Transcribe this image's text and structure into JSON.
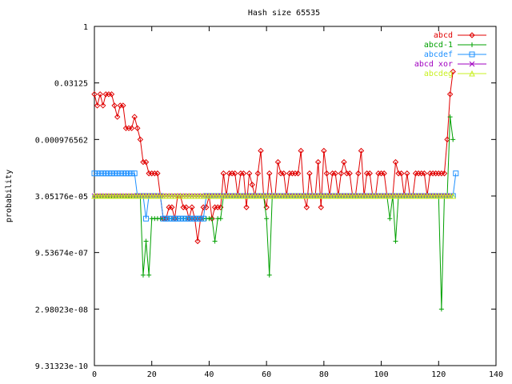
{
  "chart_data": {
    "type": "line",
    "title": "Hash size 65535",
    "xlabel": "",
    "ylabel": "probability",
    "xlim": [
      0,
      140
    ],
    "x_ticks": [
      0,
      20,
      40,
      60,
      80,
      100,
      120,
      140
    ],
    "x_tick_labels": [
      "0",
      "20",
      "40",
      "60",
      "80",
      "100",
      "120",
      "140"
    ],
    "ylim_log2": [
      -30,
      0
    ],
    "y_scale": "log2",
    "y_ticks_log2": [
      0,
      -5,
      -10,
      -15,
      -20,
      -25,
      -30
    ],
    "y_tick_labels": [
      "1",
      "0.03125",
      "0.000976562",
      "3.05176e-05",
      "9.53674e-07",
      "2.98023e-08",
      "9.31323e-10"
    ],
    "legend_position": "top-right",
    "grid": false,
    "series": [
      {
        "name": "abcd",
        "color": "#e00000",
        "marker": "diamond",
        "x_start": 0,
        "y_log2": [
          -6,
          -7,
          -6,
          -7,
          -6,
          -6,
          -6,
          -7,
          -8,
          -7,
          -7,
          -9,
          -9,
          -9,
          -8,
          -9,
          -10,
          -12,
          -12,
          -13,
          -13,
          -13,
          -13,
          -15,
          -17,
          -17,
          -16,
          -16,
          -17,
          -15,
          -15,
          -16,
          -16,
          -17,
          -16,
          -17,
          -19,
          -17,
          -16,
          -16,
          -15,
          -17,
          -16,
          -16,
          -16,
          -13,
          -15,
          -13,
          -13,
          -13,
          -15,
          -13,
          -13,
          -16,
          -13,
          -14,
          -15,
          -13,
          -11,
          -15,
          -16,
          -13,
          -15,
          -15,
          -12,
          -13,
          -13,
          -15,
          -13,
          -13,
          -13,
          -13,
          -11,
          -15,
          -16,
          -13,
          -15,
          -15,
          -12,
          -16,
          -11,
          -13,
          -15,
          -13,
          -13,
          -15,
          -13,
          -12,
          -13,
          -13,
          -15,
          -15,
          -13,
          -11,
          -15,
          -13,
          -13,
          -15,
          -15,
          -13,
          -13,
          -13,
          -15,
          -15,
          -15,
          -12,
          -13,
          -13,
          -15,
          -13,
          -15,
          -15,
          -13,
          -13,
          -13,
          -13,
          -15,
          -13,
          -13,
          -13,
          -13,
          -13,
          -13,
          -10,
          -6,
          -4
        ]
      },
      {
        "name": "abcd-1",
        "color": "#00a000",
        "marker": "plus",
        "x_start": 0,
        "y_log2": [
          -15,
          -15,
          -15,
          -15,
          -15,
          -15,
          -15,
          -15,
          -15,
          -15,
          -15,
          -15,
          -15,
          -15,
          -15,
          -15,
          -15,
          -22,
          -19,
          -22,
          -17,
          -17,
          -17,
          -17,
          -17,
          -17,
          -17,
          -17,
          -17,
          -17,
          -17,
          -17,
          -17,
          -17,
          -17,
          -17,
          -17,
          -17,
          -17,
          -17,
          -17,
          -17,
          -19,
          -17,
          -17,
          -15,
          -15,
          -15,
          -15,
          -15,
          -15,
          -15,
          -15,
          -15,
          -15,
          -15,
          -15,
          -15,
          -15,
          -15,
          -17,
          -22,
          -15,
          -15,
          -15,
          -15,
          -15,
          -15,
          -15,
          -15,
          -15,
          -15,
          -15,
          -15,
          -15,
          -15,
          -15,
          -15,
          -15,
          -15,
          -15,
          -15,
          -15,
          -15,
          -15,
          -15,
          -15,
          -15,
          -15,
          -15,
          -15,
          -15,
          -15,
          -15,
          -15,
          -15,
          -15,
          -15,
          -15,
          -15,
          -15,
          -15,
          -15,
          -17,
          -15,
          -19,
          -15,
          -15,
          -15,
          -15,
          -15,
          -15,
          -15,
          -15,
          -15,
          -15,
          -15,
          -15,
          -15,
          -15,
          -15,
          -25,
          -15,
          -15,
          -8,
          -10
        ]
      },
      {
        "name": "abcdef",
        "color": "#1e90ff",
        "marker": "square",
        "x_start": 0,
        "y_log2": [
          -13,
          -13,
          -13,
          -13,
          -13,
          -13,
          -13,
          -13,
          -13,
          -13,
          -13,
          -13,
          -13,
          -13,
          -13,
          -15,
          -15,
          -15,
          -17,
          -15,
          -15,
          -15,
          -15,
          -15,
          -17,
          -17,
          -17,
          -17,
          -17,
          -17,
          -17,
          -17,
          -17,
          -17,
          -17,
          -17,
          -17,
          -17,
          -17,
          -15,
          -15,
          -15,
          -15,
          -15,
          -15,
          -15,
          -15,
          -15,
          -15,
          -15,
          -15,
          -15,
          -15,
          -15,
          -15,
          -15,
          -15,
          -15,
          -15,
          -15,
          -15,
          -15,
          -15,
          -15,
          -15,
          -15,
          -15,
          -15,
          -15,
          -15,
          -15,
          -15,
          -15,
          -15,
          -15,
          -15,
          -15,
          -15,
          -15,
          -15,
          -15,
          -15,
          -15,
          -15,
          -15,
          -15,
          -15,
          -15,
          -15,
          -15,
          -15,
          -15,
          -15,
          -15,
          -15,
          -15,
          -15,
          -15,
          -15,
          -15,
          -15,
          -15,
          -15,
          -15,
          -15,
          -15,
          -15,
          -15,
          -15,
          -15,
          -15,
          -15,
          -15,
          -15,
          -15,
          -15,
          -15,
          -15,
          -15,
          -15,
          -15,
          -15,
          -15,
          -15,
          -15,
          -15,
          -13
        ]
      },
      {
        "name": "abcd xor",
        "color": "#a000c0",
        "marker": "cross",
        "x_start": 0,
        "y_log2": [
          -15,
          -15,
          -15,
          -15,
          -15,
          -15,
          -15,
          -15,
          -15,
          -15,
          -15,
          -15,
          -15,
          -15,
          -15,
          -15,
          -15,
          -15,
          -15,
          -15,
          -15,
          -15,
          -15,
          -15,
          -15,
          -15,
          -15,
          -15,
          -15,
          -15,
          -15,
          -15,
          -15,
          -15,
          -15,
          -15,
          -15,
          -15,
          -15,
          -15,
          -15,
          -15,
          -15,
          -15,
          -15,
          -15,
          -15,
          -15,
          -15,
          -15,
          -15,
          -15,
          -15,
          -15,
          -15,
          -15,
          -15,
          -15,
          -15,
          -15,
          -15,
          -15,
          -15,
          -15,
          -15,
          -15,
          -15,
          -15,
          -15,
          -15,
          -15,
          -15,
          -15,
          -15,
          -15,
          -15,
          -15,
          -15,
          -15,
          -15,
          -15,
          -15,
          -15,
          -15,
          -15,
          -15,
          -15,
          -15,
          -15,
          -15,
          -15,
          -15,
          -15,
          -15,
          -15,
          -15,
          -15,
          -15,
          -15,
          -15,
          -15,
          -15,
          -15,
          -15,
          -15,
          -15,
          -15,
          -15,
          -15,
          -15,
          -15,
          -15,
          -15,
          -15,
          -15,
          -15,
          -15,
          -15,
          -15,
          -15,
          -15,
          -15,
          -15,
          -15,
          -15
        ]
      },
      {
        "name": "abcdeg",
        "color": "#c8f020",
        "marker": "triangle",
        "x_start": 0,
        "y_log2": [
          -15,
          -15,
          -15,
          -15,
          -15,
          -15,
          -15,
          -15,
          -15,
          -15,
          -15,
          -15,
          -15,
          -15,
          -15,
          -15,
          -15,
          -15,
          -15,
          -15,
          -15,
          -15,
          -15,
          -15,
          -15,
          -15,
          -15,
          -15,
          -15,
          -15,
          -15,
          -15,
          -15,
          -15,
          -15,
          -15,
          -15,
          -15,
          -15,
          -15,
          -15,
          -15,
          -15,
          -15,
          -15,
          -15,
          -15,
          -15,
          -15,
          -15,
          -15,
          -15,
          -15,
          -15,
          -15,
          -15,
          -15,
          -15,
          -15,
          -15,
          -15,
          -15,
          -15,
          -15,
          -15,
          -15,
          -15,
          -15,
          -15,
          -15,
          -15,
          -15,
          -15,
          -15,
          -15,
          -15,
          -15,
          -15,
          -15,
          -15,
          -15,
          -15,
          -15,
          -15,
          -15,
          -15,
          -15,
          -15,
          -15,
          -15,
          -15,
          -15,
          -15,
          -15,
          -15,
          -15,
          -15,
          -15,
          -15,
          -15,
          -15,
          -15,
          -15,
          -15,
          -15,
          -15,
          -15,
          -15,
          -15,
          -15,
          -15,
          -15,
          -15,
          -15,
          -15,
          -15,
          -15,
          -15,
          -15,
          -15,
          -15,
          -15,
          -15,
          -15,
          -15,
          -15
        ]
      }
    ]
  }
}
